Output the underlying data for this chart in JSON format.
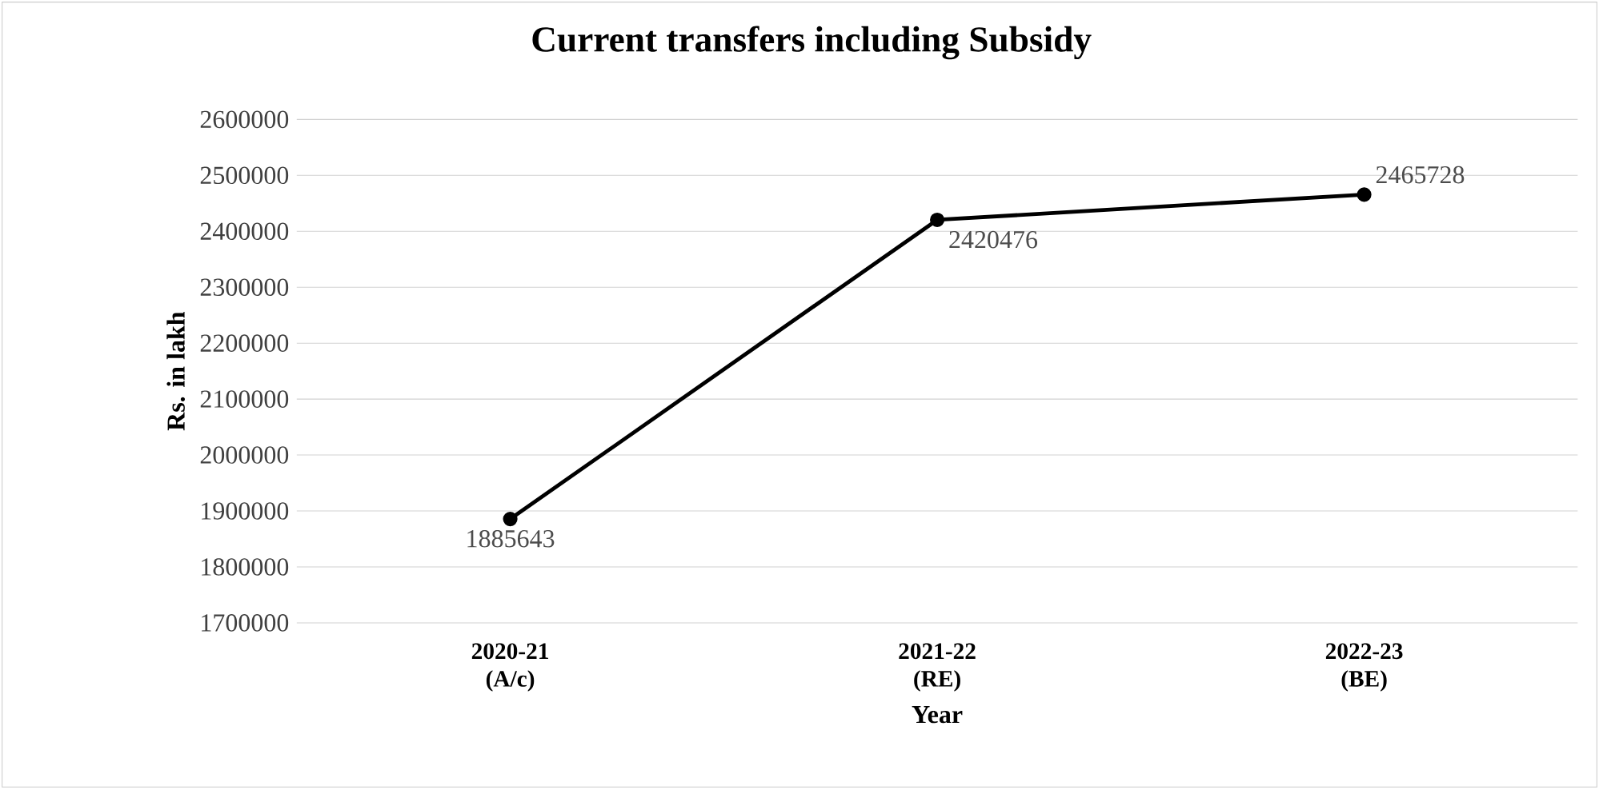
{
  "chart_data": {
    "type": "line",
    "title": "Current transfers including  Subsidy",
    "xlabel": "Year",
    "ylabel": "Rs. in lakh",
    "categories": [
      "2020-21 (A/c)",
      "2021-22 (RE)",
      "2022-23 (BE)"
    ],
    "series": [
      {
        "color": "#000000",
        "values": [
          1885643,
          2420476,
          2465728
        ]
      }
    ],
    "ylim": [
      1700000,
      2600000
    ],
    "yticks": [
      1700000,
      1800000,
      1900000,
      2000000,
      2100000,
      2200000,
      2300000,
      2400000,
      2500000,
      2600000
    ],
    "grid": "y",
    "marker": "circle",
    "line_style": "solid",
    "data_labels": true
  }
}
